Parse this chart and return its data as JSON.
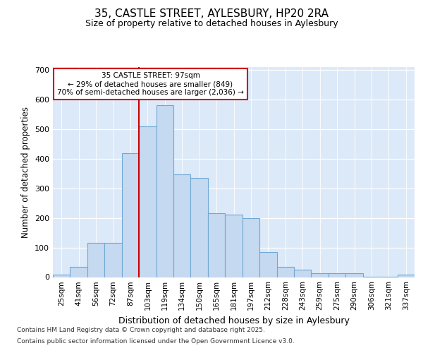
{
  "title_line1": "35, CASTLE STREET, AYLESBURY, HP20 2RA",
  "title_line2": "Size of property relative to detached houses in Aylesbury",
  "xlabel": "Distribution of detached houses by size in Aylesbury",
  "ylabel": "Number of detached properties",
  "categories": [
    "25sqm",
    "41sqm",
    "56sqm",
    "72sqm",
    "87sqm",
    "103sqm",
    "119sqm",
    "134sqm",
    "150sqm",
    "165sqm",
    "181sqm",
    "197sqm",
    "212sqm",
    "228sqm",
    "243sqm",
    "259sqm",
    "275sqm",
    "290sqm",
    "306sqm",
    "321sqm",
    "337sqm"
  ],
  "values": [
    8,
    35,
    116,
    116,
    420,
    510,
    580,
    348,
    335,
    215,
    212,
    200,
    84,
    34,
    25,
    14,
    13,
    13,
    1,
    1,
    8
  ],
  "bar_color": "#c5d9f0",
  "bar_edge_color": "#6fa8d4",
  "vline_color": "#cc0000",
  "vline_x": 4.5,
  "annotation_line1": "35 CASTLE STREET: 97sqm",
  "annotation_line2": "← 29% of detached houses are smaller (849)",
  "annotation_line3": "70% of semi-detached houses are larger (2,036) →",
  "annotation_box_color": "#ffffff",
  "annotation_box_edge_color": "#cc0000",
  "ylim_max": 710,
  "yticks": [
    0,
    100,
    200,
    300,
    400,
    500,
    600,
    700
  ],
  "plot_bg_color": "#dce9f8",
  "fig_bg_color": "#ffffff",
  "footer_line1": "Contains HM Land Registry data © Crown copyright and database right 2025.",
  "footer_line2": "Contains public sector information licensed under the Open Government Licence v3.0."
}
